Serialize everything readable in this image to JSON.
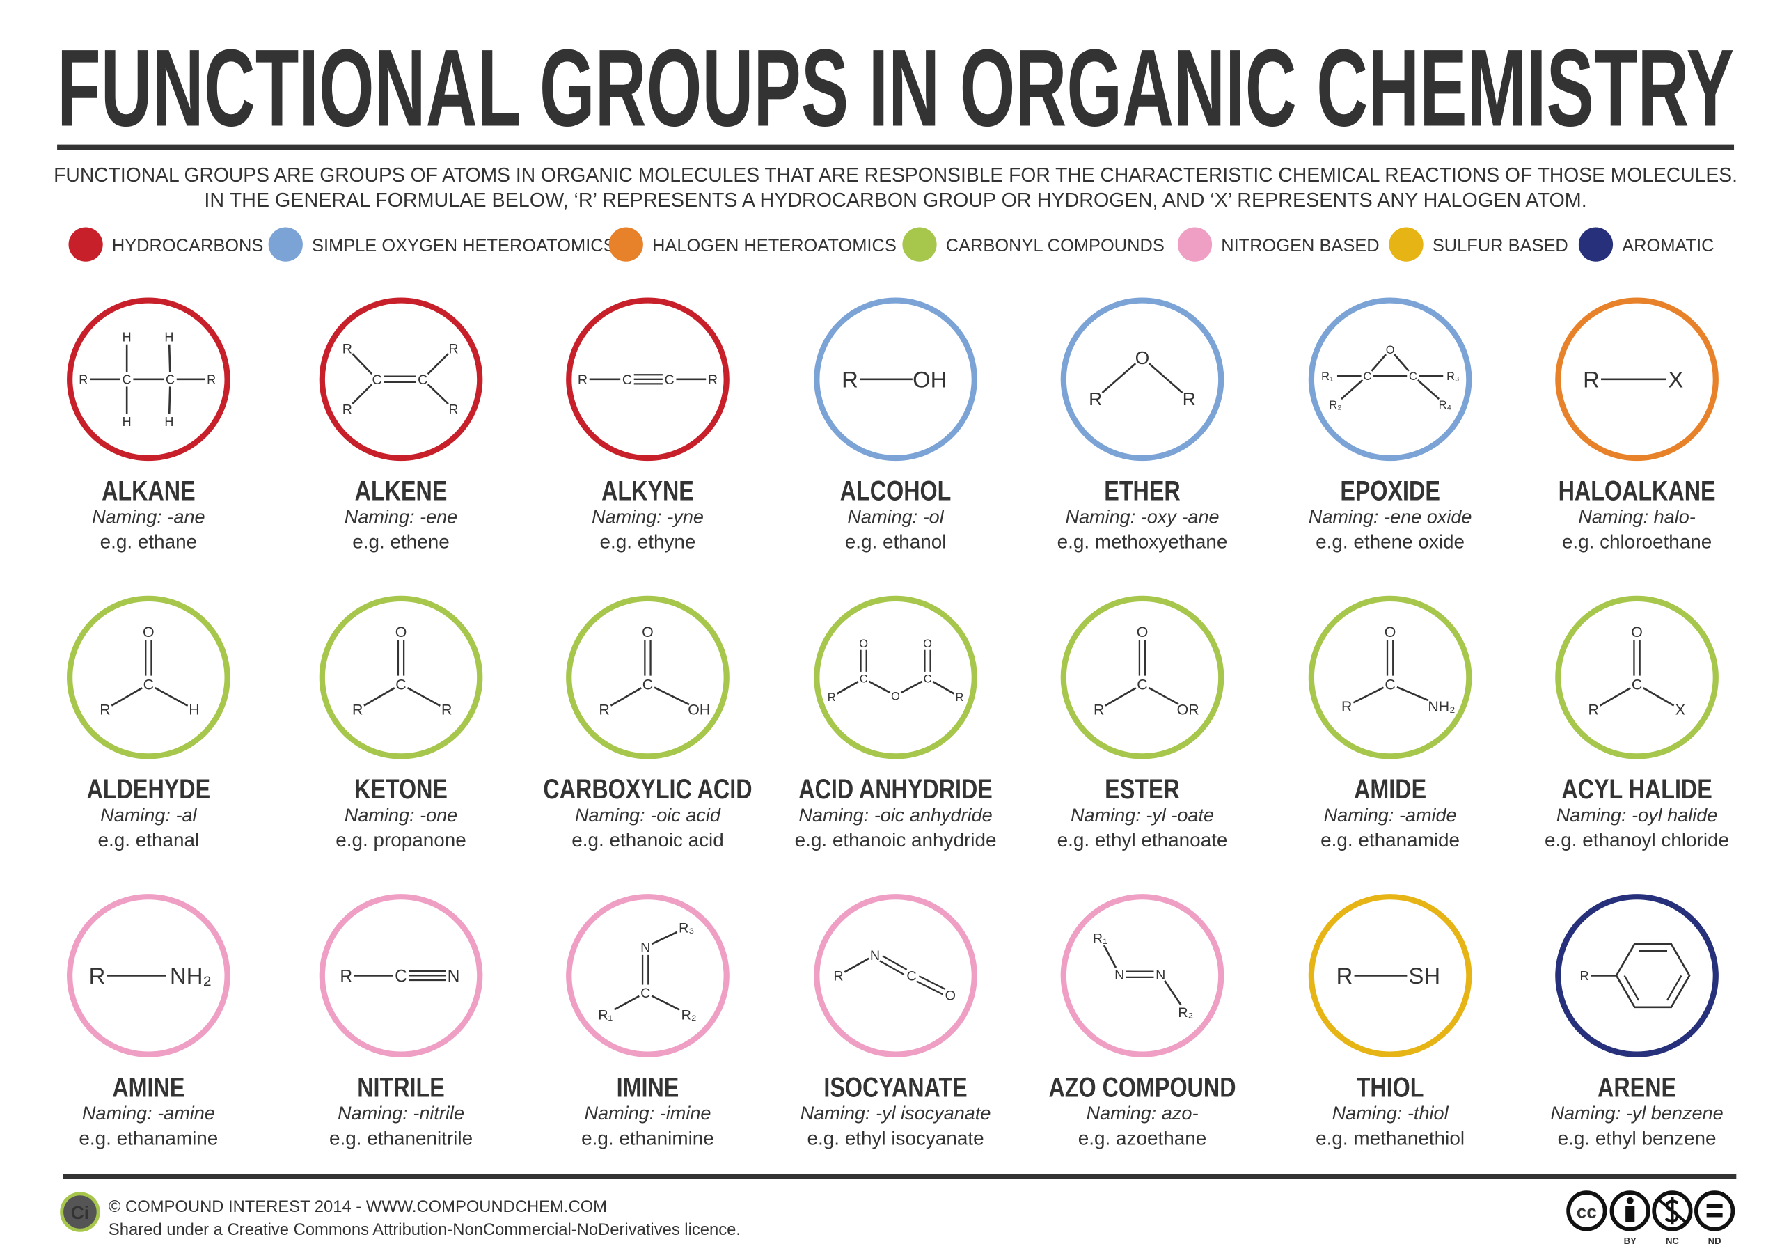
{
  "header": {
    "title": "FUNCTIONAL GROUPS IN ORGANIC CHEMISTRY",
    "subtitle": [
      "FUNCTIONAL GROUPS ARE GROUPS OF ATOMS IN ORGANIC MOLECULES THAT ARE RESPONSIBLE FOR THE CHARACTERISTIC CHEMICAL REACTIONS OF THOSE MOLECULES.",
      "IN THE GENERAL FORMULAE BELOW, ‘R’ REPRESENTS A HYDROCARBON GROUP OR HYDROGEN, AND ‘X’ REPRESENTS ANY HALOGEN ATOM."
    ]
  },
  "legend": [
    {
      "label": "HYDROCARBONS",
      "color": "#c8202a"
    },
    {
      "label": "SIMPLE OXYGEN HETEROATOMICS",
      "color": "#7ba3d6"
    },
    {
      "label": "HALOGEN HETEROATOMICS",
      "color": "#e8822a"
    },
    {
      "label": "CARBONYL COMPOUNDS",
      "color": "#a6c64c"
    },
    {
      "label": "NITROGEN BASED",
      "color": "#ef9ec4"
    },
    {
      "label": "SULFUR BASED",
      "color": "#e6b414"
    },
    {
      "label": "AROMATIC",
      "color": "#27317b"
    }
  ],
  "groups": [
    {
      "name": "ALKANE",
      "naming": "Naming: -ane",
      "example": "e.g. ethane",
      "color": "#c8202a",
      "atoms": [
        "R",
        "C",
        "C",
        "R",
        "H",
        "H",
        "H",
        "H"
      ]
    },
    {
      "name": "ALKENE",
      "naming": "Naming: -ene",
      "example": "e.g. ethene",
      "color": "#c8202a",
      "atoms": [
        "R",
        "R",
        "C",
        "C",
        "R",
        "R"
      ]
    },
    {
      "name": "ALKYNE",
      "naming": "Naming: -yne",
      "example": "e.g. ethyne",
      "color": "#c8202a",
      "atoms": [
        "R",
        "C",
        "C",
        "R"
      ]
    },
    {
      "name": "ALCOHOL",
      "naming": "Naming: -ol",
      "example": "e.g. ethanol",
      "color": "#7ba3d6",
      "atoms": [
        "R",
        "OH"
      ]
    },
    {
      "name": "ETHER",
      "naming": "Naming: -oxy -ane",
      "example": "e.g. methoxyethane",
      "color": "#7ba3d6",
      "atoms": [
        "O",
        "R",
        "R"
      ]
    },
    {
      "name": "EPOXIDE",
      "naming": "Naming: -ene oxide",
      "example": "e.g. ethene oxide",
      "color": "#7ba3d6",
      "atoms": [
        "O",
        "C",
        "C",
        "R₁",
        "R₃",
        "R₂",
        "R₄"
      ]
    },
    {
      "name": "HALOALKANE",
      "naming": "Naming: halo-",
      "example": "e.g. chloroethane",
      "color": "#e8822a",
      "atoms": [
        "R",
        "X"
      ]
    },
    {
      "name": "ALDEHYDE",
      "naming": "Naming: -al",
      "example": "e.g. ethanal",
      "color": "#a6c64c",
      "atoms": [
        "O",
        "C",
        "R",
        "H"
      ]
    },
    {
      "name": "KETONE",
      "naming": "Naming: -one",
      "example": "e.g. propanone",
      "color": "#a6c64c",
      "atoms": [
        "O",
        "C",
        "R",
        "R"
      ]
    },
    {
      "name": "CARBOXYLIC ACID",
      "naming": "Naming: -oic acid",
      "example": "e.g. ethanoic acid",
      "color": "#a6c64c",
      "atoms": [
        "O",
        "C",
        "R",
        "OH"
      ]
    },
    {
      "name": "ACID ANHYDRIDE",
      "naming": "Naming: -oic anhydride",
      "example": "e.g. ethanoic anhydride",
      "color": "#a6c64c",
      "atoms": [
        "O",
        "C",
        "O",
        "C",
        "O",
        "R",
        "R"
      ]
    },
    {
      "name": "ESTER",
      "naming": "Naming: -yl -oate",
      "example": "e.g. ethyl ethanoate",
      "color": "#a6c64c",
      "atoms": [
        "O",
        "C",
        "R",
        "OR"
      ]
    },
    {
      "name": "AMIDE",
      "naming": "Naming: -amide",
      "example": "e.g. ethanamide",
      "color": "#a6c64c",
      "atoms": [
        "O",
        "C",
        "R",
        "NH₂"
      ]
    },
    {
      "name": "ACYL HALIDE",
      "naming": "Naming: -oyl halide",
      "example": "e.g. ethanoyl chloride",
      "color": "#a6c64c",
      "atoms": [
        "O",
        "C",
        "R",
        "X"
      ]
    },
    {
      "name": "AMINE",
      "naming": "Naming: -amine",
      "example": "e.g. ethanamine",
      "color": "#ef9ec4",
      "atoms": [
        "R",
        "NH₂"
      ]
    },
    {
      "name": "NITRILE",
      "naming": "Naming: -nitrile",
      "example": "e.g. ethanenitrile",
      "color": "#ef9ec4",
      "atoms": [
        "R",
        "C",
        "N"
      ]
    },
    {
      "name": "IMINE",
      "naming": "Naming: -imine",
      "example": "e.g. ethanimine",
      "color": "#ef9ec4",
      "atoms": [
        "N",
        "R₃",
        "C",
        "R₁",
        "R₂"
      ]
    },
    {
      "name": "ISOCYANATE",
      "naming": "Naming: -yl isocyanate",
      "example": "e.g. ethyl isocyanate",
      "color": "#ef9ec4",
      "atoms": [
        "R",
        "N",
        "C",
        "O"
      ]
    },
    {
      "name": "AZO COMPOUND",
      "naming": "Naming: azo-",
      "example": "e.g. azoethane",
      "color": "#ef9ec4",
      "atoms": [
        "R₁",
        "N",
        "N",
        "R₂"
      ]
    },
    {
      "name": "THIOL",
      "naming": "Naming: -thiol",
      "example": "e.g. methanethiol",
      "color": "#e6b414",
      "atoms": [
        "R",
        "SH"
      ]
    },
    {
      "name": "ARENE",
      "naming": "Naming: -yl benzene",
      "example": "e.g. ethyl benzene",
      "color": "#27317b",
      "atoms": [
        "R"
      ]
    }
  ],
  "footer": {
    "logo": "Ci",
    "credit": "© COMPOUND INTEREST 2014 - WWW.COMPOUNDCHEM.COM",
    "licence": "Shared under a Creative Commons Attribution-NonCommercial-NoDerivatives licence.",
    "badges": [
      "cc",
      "BY",
      "NC",
      "ND"
    ]
  }
}
